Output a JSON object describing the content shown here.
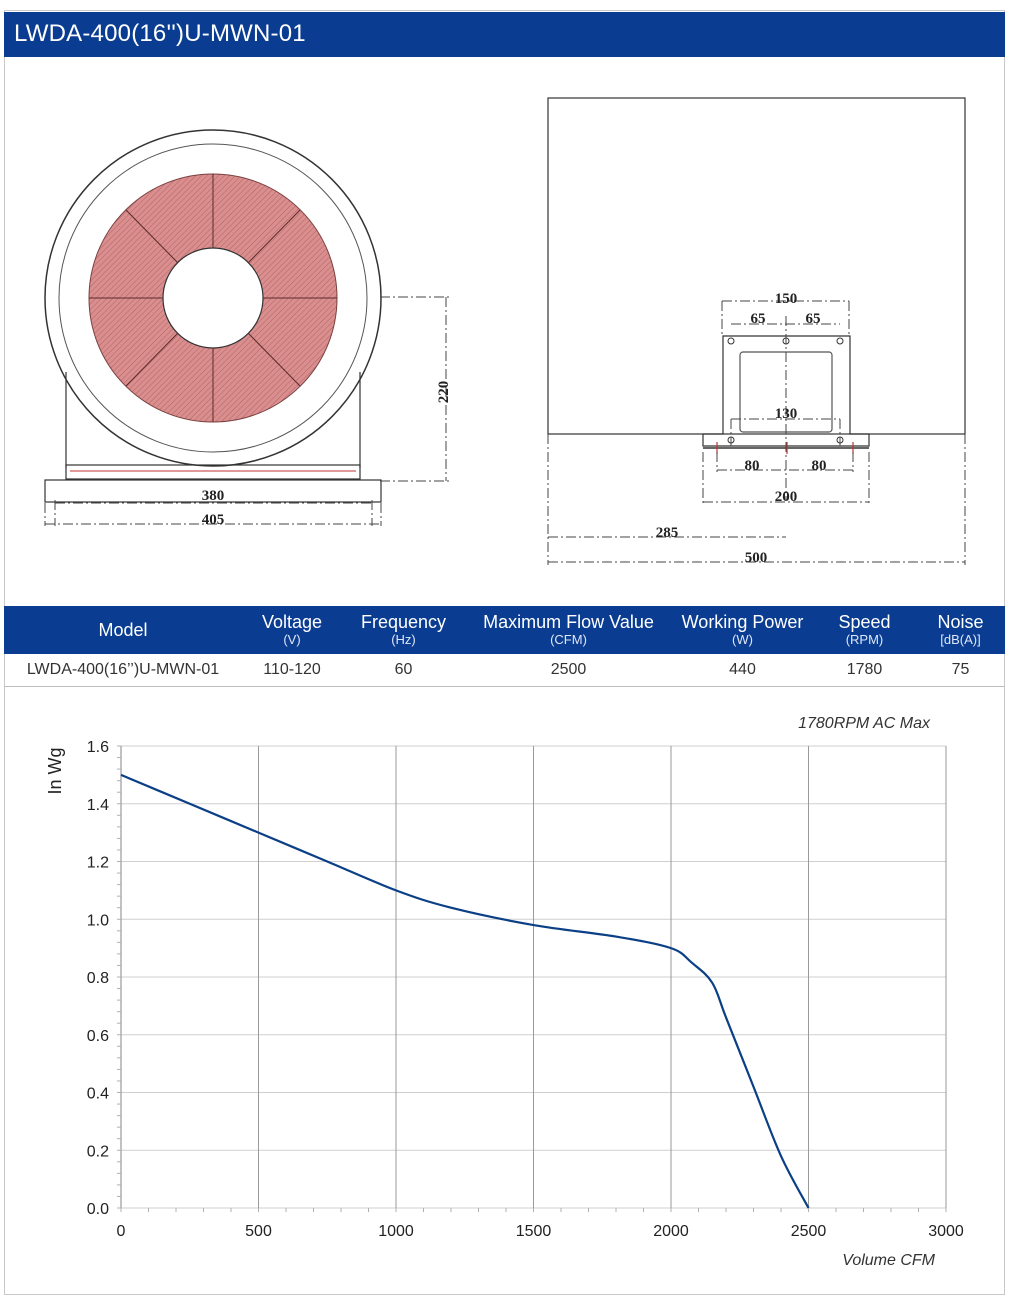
{
  "header": {
    "title": "LWDA-400(16'')U-MWN-01"
  },
  "drawings": {
    "front_view": {
      "dimensions": {
        "height": "220",
        "base_inner": "380",
        "base_outer": "405"
      }
    },
    "side_view": {
      "dimensions": {
        "top_span": "150",
        "top_left": "65",
        "top_right": "65",
        "inner": "130",
        "left_half": "80",
        "right_half": "80",
        "base": "200",
        "offset": "285",
        "total": "500"
      }
    }
  },
  "spec_table": {
    "columns": [
      {
        "label": "Model",
        "unit": ""
      },
      {
        "label": "Voltage",
        "unit": "(V)"
      },
      {
        "label": "Frequency",
        "unit": "(Hz)"
      },
      {
        "label": "Maximum Flow Value",
        "unit": "(CFM)"
      },
      {
        "label": "Working Power",
        "unit": "(W)"
      },
      {
        "label": "Speed",
        "unit": "(RPM)"
      },
      {
        "label": "Noise",
        "unit": "[dB(A)]"
      }
    ],
    "rows": [
      [
        "LWDA-400(16’’)U-MWN-01",
        "110-120",
        "60",
        "2500",
        "440",
        "1780",
        "75"
      ]
    ]
  },
  "chart_data": {
    "type": "line",
    "title": "",
    "annotation": "1780RPM AC Max",
    "xlabel": "Volume CFM",
    "ylabel": "In Wg",
    "xlim": [
      0,
      3000
    ],
    "ylim": [
      0,
      1.6
    ],
    "xticks": [
      "0",
      "500",
      "1000",
      "1500",
      "2000",
      "2500",
      "3000"
    ],
    "yticks": [
      "0.0",
      "0.2",
      "0.4",
      "0.6",
      "0.8",
      "1.0",
      "1.2",
      "1.4",
      "1.6"
    ],
    "grid": true,
    "line_color": "#0b3f86",
    "series": [
      {
        "x": [
          0,
          250,
          500,
          750,
          1000,
          1200,
          1500,
          1800,
          2000,
          2075,
          2150,
          2200,
          2300,
          2400,
          2500
        ],
        "y": [
          1.5,
          1.4,
          1.3,
          1.2,
          1.1,
          1.04,
          0.98,
          0.94,
          0.9,
          0.85,
          0.78,
          0.66,
          0.42,
          0.18,
          0.0
        ]
      }
    ]
  }
}
